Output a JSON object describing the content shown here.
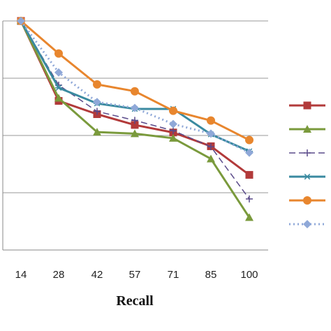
{
  "chart_data": {
    "type": "line",
    "xlabel": "Recall",
    "ylabel": "",
    "title": "",
    "categories": [
      "14",
      "28",
      "42",
      "57",
      "71",
      "85",
      "100"
    ],
    "ylim": [
      0,
      1
    ],
    "grid": true,
    "legend_position": "right",
    "series": [
      {
        "color": "#b23a3a",
        "marker": "square",
        "dash": "solid",
        "values": [
          1.0,
          0.651,
          0.593,
          0.546,
          0.513,
          0.453,
          0.328
        ]
      },
      {
        "color": "#7a9a3c",
        "marker": "triangle",
        "dash": "solid",
        "values": [
          1.0,
          0.663,
          0.515,
          0.508,
          0.488,
          0.398,
          0.142
        ]
      },
      {
        "color": "#5a4a8a",
        "marker": "plus",
        "dash": "dashed",
        "values": [
          1.0,
          0.72,
          0.605,
          0.566,
          0.521,
          0.451,
          0.223
        ]
      },
      {
        "color": "#3a8aa0",
        "marker": "asterisk",
        "dash": "solid",
        "values": [
          1.0,
          0.708,
          0.64,
          0.616,
          0.616,
          0.505,
          0.431
        ]
      },
      {
        "color": "#e8862e",
        "marker": "circle",
        "dash": "solid",
        "values": [
          1.0,
          0.858,
          0.723,
          0.693,
          0.608,
          0.565,
          0.48
        ]
      },
      {
        "color": "#8fa8d8",
        "marker": "diamond",
        "dash": "dotted",
        "values": [
          1.0,
          0.775,
          0.646,
          0.62,
          0.55,
          0.508,
          0.425
        ]
      }
    ]
  }
}
